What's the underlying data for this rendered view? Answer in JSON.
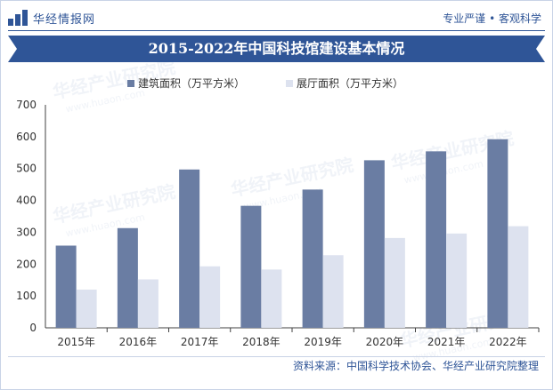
{
  "brand": {
    "name": "华经情报网"
  },
  "tagline": "专业严谨 • 客观科学",
  "title": "2015-2022年中国科技馆建设基本情况",
  "watermark": {
    "text_cn": "华经产业研究院",
    "text_en": "www.huaon.com"
  },
  "source": "资料来源：中国科学技术协会、华经产业研究院整理",
  "colors": {
    "series1": "#6a7da3",
    "series2": "#dde2ef",
    "brand": "#2f5597",
    "grid": "#d0d4dc",
    "axis": "#404040"
  },
  "chart_data": {
    "type": "bar",
    "categories": [
      "2015年",
      "2016年",
      "2017年",
      "2018年",
      "2019年",
      "2020年",
      "2021年",
      "2022年"
    ],
    "series": [
      {
        "name": "建筑面积（万平方米）",
        "values": [
          258,
          313,
          497,
          383,
          434,
          526,
          554,
          592
        ]
      },
      {
        "name": "展厅面积（万平方米）",
        "values": [
          120,
          152,
          193,
          183,
          228,
          282,
          296,
          319
        ]
      }
    ],
    "ylim": [
      0,
      700
    ],
    "yticks": [
      "0",
      "100",
      "200",
      "300",
      "400",
      "500",
      "600",
      "700"
    ],
    "grid": false,
    "legend": "top-left"
  }
}
